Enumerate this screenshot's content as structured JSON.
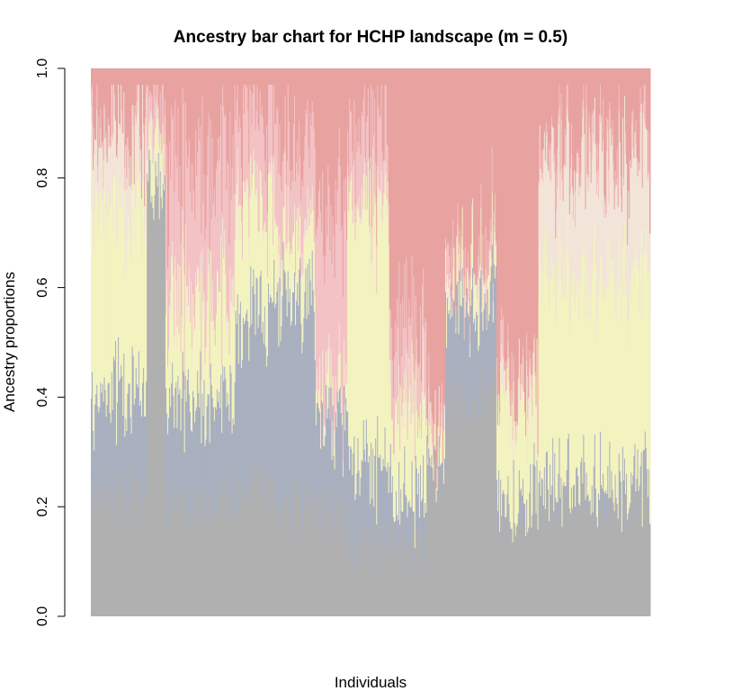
{
  "chart_data": {
    "type": "bar",
    "subtype": "stacked-ancestry",
    "title": "Ancestry bar chart for HCHP landscape (m = 0.5)",
    "xlabel": "Individuals",
    "ylabel": "Ancestry proportions",
    "ylim": [
      0,
      1
    ],
    "y_ticks": [
      "0.0",
      "0.2",
      "0.4",
      "0.6",
      "0.8",
      "1.0"
    ],
    "grid": false,
    "legend": "none",
    "n_individuals": 600,
    "groups": [
      {
        "n": 60,
        "values": [
          0.22,
          0.19,
          0.34,
          0.13,
          0.01
        ]
      },
      {
        "n": 20,
        "values": [
          0.78,
          0.01,
          0.06,
          0.01,
          0.08
        ]
      },
      {
        "n": 75,
        "values": [
          0.21,
          0.2,
          0.17,
          0.01,
          0.24
        ]
      },
      {
        "n": 40,
        "values": [
          0.24,
          0.31,
          0.2,
          0.01,
          0.15
        ]
      },
      {
        "n": 45,
        "values": [
          0.2,
          0.38,
          0.11,
          0.01,
          0.16
        ]
      },
      {
        "n": 35,
        "values": [
          0.18,
          0.17,
          0.03,
          0.01,
          0.31
        ]
      },
      {
        "n": 45,
        "values": [
          0.12,
          0.15,
          0.47,
          0.01,
          0.12
        ]
      },
      {
        "n": 40,
        "values": [
          0.12,
          0.09,
          0.16,
          0.01,
          0.15
        ]
      },
      {
        "n": 20,
        "values": [
          0.25,
          0.02,
          0.02,
          0.01,
          0.01
        ]
      },
      {
        "n": 55,
        "values": [
          0.4,
          0.17,
          0.05,
          0.01,
          0.03
        ]
      },
      {
        "n": 45,
        "values": [
          0.19,
          0.02,
          0.18,
          0.02,
          0.02
        ]
      },
      {
        "n": 120,
        "values": [
          0.21,
          0.04,
          0.37,
          0.21,
          0.02
        ]
      }
    ],
    "colors": [
      "#b0b0b0",
      "#a9b0bf",
      "#f3f3c0",
      "#f2e4d8",
      "#f3c2c4",
      "#e8a2a0"
    ]
  }
}
